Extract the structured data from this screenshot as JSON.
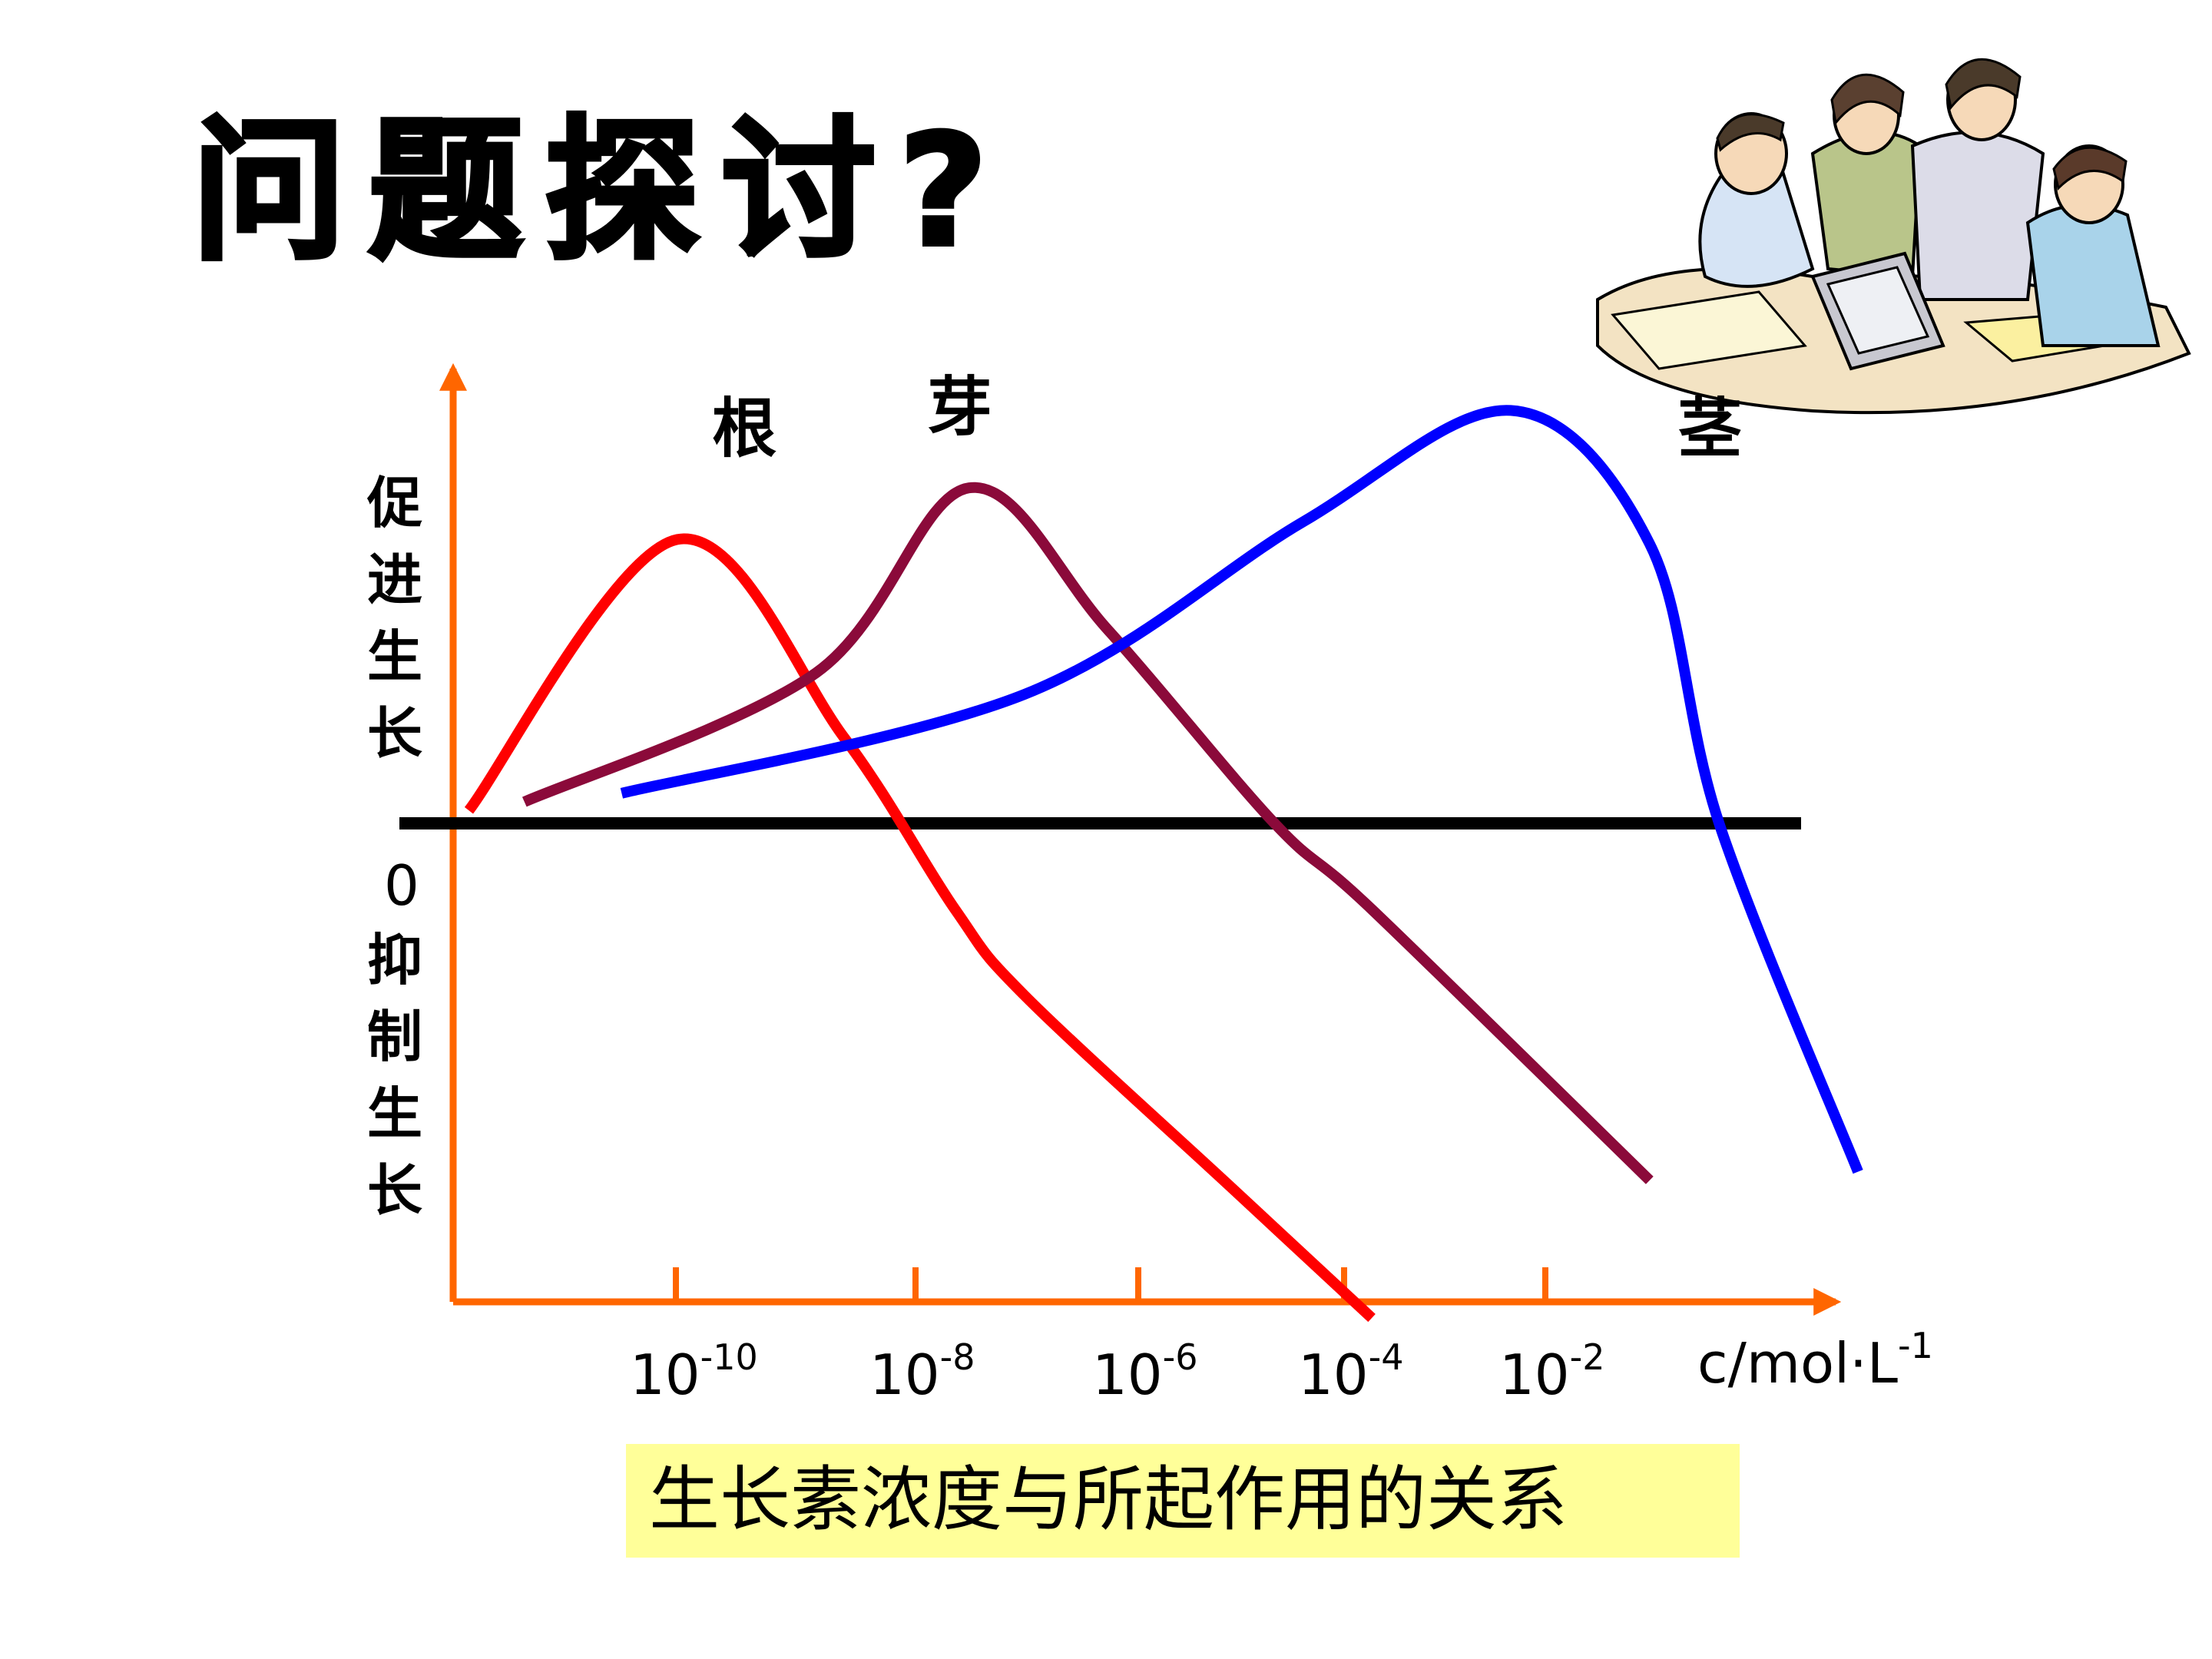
{
  "slide": {
    "title": "问题探讨?",
    "caption": "生长素浓度与所起作用的关系",
    "caption_bg": "#ffff99",
    "clipart_icon": "business-meeting-icon"
  },
  "chart_data": {
    "type": "line",
    "title": "",
    "xlabel": "c/mol·L",
    "xlabel_sup": "-1",
    "ylabel_top": [
      "促",
      "进",
      "生",
      "长"
    ],
    "ylabel_bottom": [
      "抑",
      "制",
      "生",
      "长"
    ],
    "zero_label": "0",
    "x_scale": "log",
    "x_ticks": [
      {
        "value": 1e-10,
        "base": "10",
        "exp": "-10"
      },
      {
        "value": 1e-08,
        "base": "10",
        "exp": "-8"
      },
      {
        "value": 1e-06,
        "base": "10",
        "exp": "-6"
      },
      {
        "value": 0.0001,
        "base": "10",
        "exp": "-4"
      },
      {
        "value": 0.01,
        "base": "10",
        "exp": "-2"
      }
    ],
    "xlim_exp": [
      -12,
      -0.5
    ],
    "ylim": [
      -1,
      1
    ],
    "axis_color": "#ff6600",
    "baseline_color": "#000000",
    "grid": false,
    "series": [
      {
        "name": "根",
        "color": "#ff0000",
        "label_at": [
          -9.5,
          0.92
        ],
        "points": [
          [
            -11.5,
            0.03
          ],
          [
            -10.0,
            0.66
          ],
          [
            -8.8,
            0.2
          ],
          [
            -8.0,
            -0.2
          ],
          [
            -7.5,
            -0.4
          ],
          [
            -6.0,
            -0.85
          ],
          [
            -5.0,
            -1.15
          ]
        ]
      },
      {
        "name": "芽",
        "color": "#8b0a3a",
        "label_at": [
          -7.95,
          0.97
        ],
        "points": [
          [
            -11.1,
            0.05
          ],
          [
            -9.0,
            0.35
          ],
          [
            -7.9,
            0.78
          ],
          [
            -6.9,
            0.45
          ],
          [
            -5.7,
            0.0
          ],
          [
            -5.0,
            -0.2
          ],
          [
            -3.0,
            -0.83
          ]
        ]
      },
      {
        "name": "茎",
        "color": "#0000ff",
        "label_at": [
          -2.55,
          0.92
        ],
        "points": [
          [
            -10.4,
            0.07
          ],
          [
            -7.5,
            0.3
          ],
          [
            -5.5,
            0.7
          ],
          [
            -4.0,
            0.96
          ],
          [
            -3.0,
            0.65
          ],
          [
            -2.5,
            0.0
          ],
          [
            -1.5,
            -0.81
          ]
        ]
      }
    ]
  }
}
